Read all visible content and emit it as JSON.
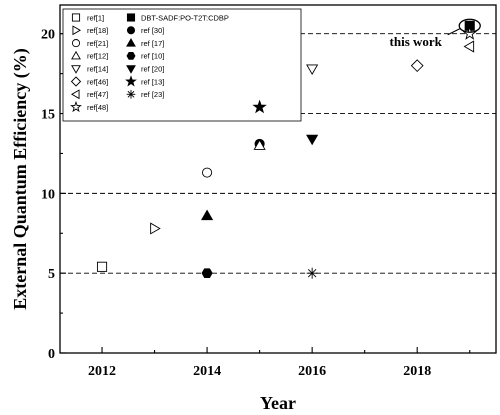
{
  "chart_data": {
    "type": "scatter",
    "title": "",
    "xlabel": "Year",
    "ylabel": "External Quantum Efficiency (%)",
    "xlim": [
      2011.2,
      2019.5
    ],
    "ylim": [
      0,
      21.8
    ],
    "xticks": [
      2012,
      2014,
      2016,
      2018
    ],
    "yticks": [
      0,
      5,
      10,
      15,
      20
    ],
    "reference_lines": [
      5,
      10,
      15,
      20
    ],
    "grid": false,
    "legend_position": "top-left",
    "legend_columns": 2,
    "series": [
      {
        "name": "ref[1]",
        "marker": "square-open",
        "points": [
          [
            2012,
            5.4
          ]
        ]
      },
      {
        "name": "DBT-SADF:PO-T2T:CDBP",
        "marker": "square-filled",
        "points": [
          [
            2019,
            20.5
          ]
        ]
      },
      {
        "name": "ref[18]",
        "marker": "triangle-right-open",
        "points": [
          [
            2013,
            7.8
          ]
        ]
      },
      {
        "name": "ref [30]",
        "marker": "circle-filled",
        "points": [
          [
            2015,
            13.1
          ]
        ]
      },
      {
        "name": "ref[21]",
        "marker": "circle-open",
        "points": [
          [
            2014,
            11.3
          ]
        ]
      },
      {
        "name": "ref [17]",
        "marker": "triangle-up-filled",
        "points": [
          [
            2014,
            8.6
          ]
        ]
      },
      {
        "name": "ref[12]",
        "marker": "triangle-up-open",
        "points": [
          [
            2015,
            13.0
          ]
        ]
      },
      {
        "name": "ref [10]",
        "marker": "hexagon-filled",
        "points": [
          [
            2014,
            5.0
          ]
        ]
      },
      {
        "name": "ref[14]",
        "marker": "triangle-down-open",
        "points": [
          [
            2016,
            17.8
          ]
        ]
      },
      {
        "name": "ref [20]",
        "marker": "triangle-down-filled",
        "points": [
          [
            2016,
            13.4
          ]
        ]
      },
      {
        "name": "ref[46]",
        "marker": "diamond-open",
        "points": [
          [
            2018,
            18.0
          ]
        ]
      },
      {
        "name": "ref [13]",
        "marker": "star-filled",
        "points": [
          [
            2015,
            15.4
          ]
        ]
      },
      {
        "name": "ref[47]",
        "marker": "triangle-left-open",
        "points": [
          [
            2019,
            19.2
          ]
        ]
      },
      {
        "name": "ref [23]",
        "marker": "asterisk",
        "points": [
          [
            2016,
            5.0
          ]
        ]
      },
      {
        "name": "ref[48]",
        "marker": "star-open",
        "points": [
          [
            2019,
            20.0
          ]
        ]
      }
    ],
    "annotations": [
      {
        "text": "this work",
        "x": 2019,
        "y": 20.5
      }
    ]
  }
}
